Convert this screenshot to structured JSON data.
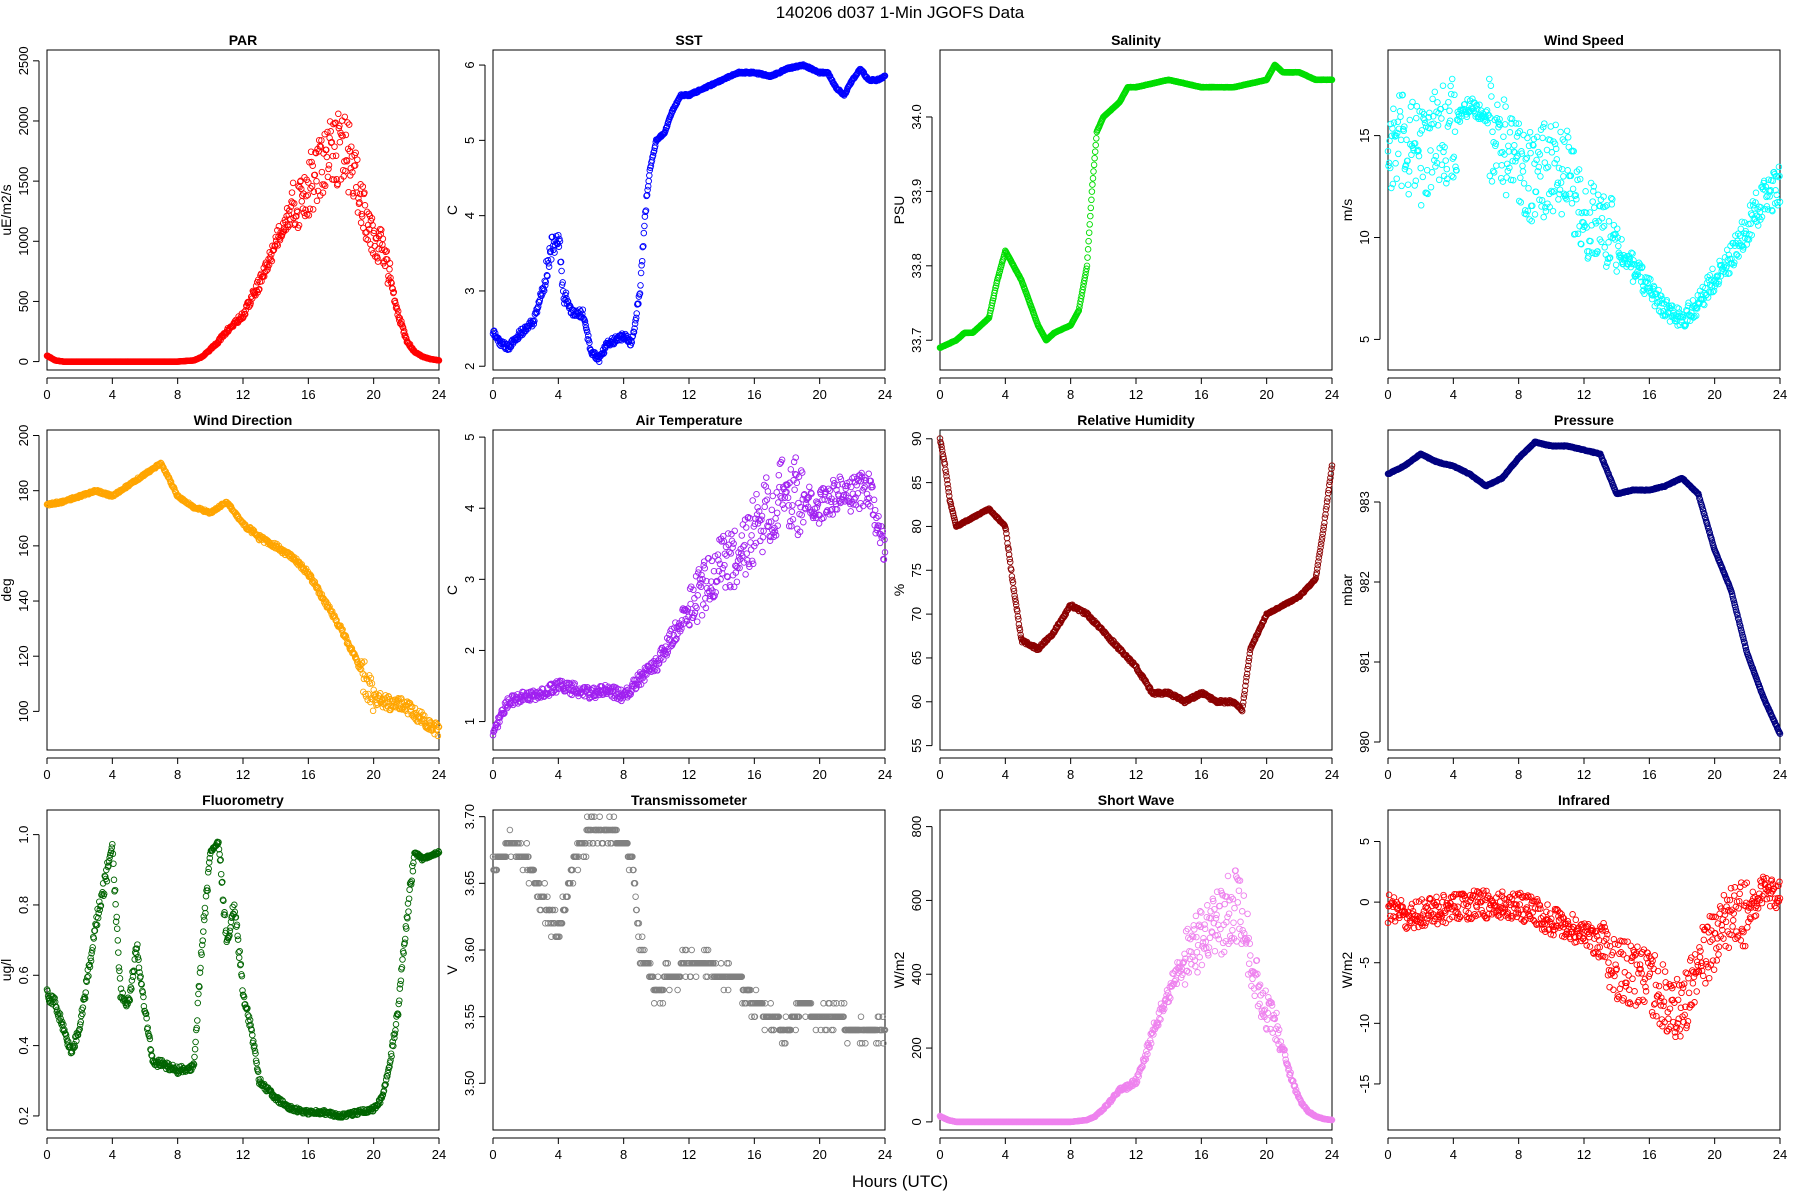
{
  "figure": {
    "title": "140206   d037   1-Min  JGOFS Data",
    "xlabel": "Hours (UTC)"
  },
  "chart_data": [
    {
      "type": "scatter",
      "title": "PAR",
      "ylabel": "uE/m2/s",
      "color": "#ff0000",
      "xlim": [
        0,
        24
      ],
      "ylim": [
        -70,
        2590
      ],
      "xticks": [
        0,
        4,
        8,
        12,
        16,
        20,
        24
      ],
      "yticks": [
        0,
        500,
        1000,
        1500,
        2000,
        2500
      ],
      "x": [
        0,
        0.5,
        1,
        2,
        4,
        6,
        8,
        9,
        9.5,
        10,
        10.5,
        11,
        11.5,
        12,
        12.5,
        13,
        13.5,
        14,
        14.5,
        15,
        15.5,
        16,
        16.5,
        17,
        17.5,
        18,
        18.5,
        19,
        19.5,
        20,
        20.5,
        21,
        21.5,
        22,
        22.5,
        23,
        23.5,
        24
      ],
      "y": [
        50,
        10,
        0,
        0,
        0,
        0,
        0,
        10,
        40,
        100,
        170,
        250,
        320,
        380,
        520,
        650,
        800,
        1000,
        1150,
        1250,
        1350,
        1450,
        1550,
        1650,
        1750,
        1800,
        1700,
        1450,
        1250,
        1050,
        950,
        700,
        400,
        180,
        80,
        40,
        20,
        10
      ],
      "noise": 0.08,
      "scatter_from": 15,
      "scatter_to": 21
    },
    {
      "type": "scatter",
      "title": "SST",
      "ylabel": "C",
      "color": "#0000ff",
      "xlim": [
        0,
        24
      ],
      "ylim": [
        1.95,
        6.2
      ],
      "xticks": [
        0,
        4,
        8,
        12,
        16,
        20,
        24
      ],
      "yticks": [
        2,
        3,
        4,
        5,
        6
      ],
      "x": [
        0,
        0.5,
        1,
        1.5,
        2,
        2.5,
        3,
        3.5,
        4,
        4.3,
        4.8,
        5.5,
        6,
        6.5,
        7,
        7.5,
        8,
        8.5,
        9,
        9.3,
        9.6,
        10,
        10.5,
        11,
        11.5,
        12,
        13,
        14,
        15,
        16,
        17,
        18,
        19,
        20,
        20.5,
        21,
        21.5,
        22,
        22.5,
        23,
        23.5,
        24
      ],
      "y": [
        2.45,
        2.3,
        2.25,
        2.4,
        2.5,
        2.6,
        3.0,
        3.5,
        3.8,
        3.0,
        2.7,
        2.7,
        2.2,
        2.1,
        2.3,
        2.35,
        2.4,
        2.3,
        3.0,
        4.0,
        4.6,
        5.0,
        5.1,
        5.4,
        5.6,
        5.6,
        5.7,
        5.8,
        5.9,
        5.9,
        5.85,
        5.95,
        6.0,
        5.9,
        5.9,
        5.7,
        5.6,
        5.8,
        5.95,
        5.8,
        5.8,
        5.85
      ],
      "noise": 0.02,
      "scatter_from": 3,
      "scatter_to": 4.5
    },
    {
      "type": "scatter",
      "title": "Salinity",
      "ylabel": "PSU",
      "color": "#00dd00",
      "xlim": [
        0,
        24
      ],
      "ylim": [
        33.66,
        34.09
      ],
      "xticks": [
        0,
        4,
        8,
        12,
        16,
        20,
        24
      ],
      "yticks": [
        33.7,
        33.8,
        33.9,
        34.0
      ],
      "yticklabels": [
        "33.7",
        "33.8",
        "33.9",
        "34.0"
      ],
      "x": [
        0,
        1,
        1.5,
        2,
        3,
        3.5,
        4,
        4.5,
        5,
        5.5,
        6,
        6.5,
        7,
        8,
        8.5,
        9,
        9.3,
        9.6,
        10,
        10.5,
        11,
        11.5,
        12,
        14,
        16,
        18,
        20,
        20.5,
        21,
        22,
        23,
        24
      ],
      "y": [
        33.69,
        33.7,
        33.71,
        33.71,
        33.73,
        33.78,
        33.82,
        33.8,
        33.78,
        33.75,
        33.72,
        33.7,
        33.71,
        33.72,
        33.74,
        33.8,
        33.9,
        33.98,
        34.0,
        34.01,
        34.02,
        34.04,
        34.04,
        34.05,
        34.04,
        34.04,
        34.05,
        34.07,
        34.06,
        34.06,
        34.05,
        34.05
      ],
      "noise": 0.004,
      "scatter_from": 3,
      "scatter_to": 5
    },
    {
      "type": "scatter",
      "title": "Wind Speed",
      "ylabel": "m/s",
      "color": "#00ffff",
      "xlim": [
        0,
        24
      ],
      "ylim": [
        3.5,
        19.2
      ],
      "xticks": [
        0,
        4,
        8,
        12,
        16,
        20,
        24
      ],
      "yticks": [
        5,
        10,
        15
      ],
      "x": [
        0,
        1,
        2,
        3,
        4,
        5,
        6,
        7,
        8,
        9,
        10,
        11,
        12,
        13,
        14,
        15,
        16,
        17,
        18,
        19,
        20,
        21,
        22,
        23,
        24
      ],
      "y": [
        14.5,
        14.5,
        14,
        15,
        15.5,
        16.5,
        16,
        14.5,
        13.5,
        13,
        13.5,
        13,
        11,
        10.5,
        10,
        8.5,
        7.5,
        6.5,
        6,
        6.8,
        8,
        9,
        10.5,
        12,
        12.5
      ],
      "noise": 0.08,
      "scatter_from": 0,
      "scatter_to": 14
    },
    {
      "type": "scatter",
      "title": "Wind Direction",
      "ylabel": "deg",
      "color": "#ffa500",
      "xlim": [
        0,
        24
      ],
      "ylim": [
        86,
        202
      ],
      "xticks": [
        0,
        4,
        8,
        12,
        16,
        20,
        24
      ],
      "yticks": [
        100,
        120,
        140,
        160,
        180,
        200
      ],
      "x": [
        0,
        1,
        2,
        3,
        4,
        5,
        6,
        7,
        8,
        9,
        10,
        11,
        12,
        13,
        14,
        15,
        16,
        17,
        18,
        19,
        20,
        21,
        22,
        23,
        24
      ],
      "y": [
        175,
        176,
        178,
        180,
        178,
        182,
        186,
        190,
        178,
        174,
        172,
        176,
        168,
        163,
        160,
        156,
        150,
        140,
        130,
        118,
        105,
        103,
        102,
        97,
        93
      ],
      "noise": 0.025,
      "scatter_from": 12,
      "scatter_to": 20
    },
    {
      "type": "scatter",
      "title": "Air Temperature",
      "ylabel": "C",
      "color": "#a020f0",
      "xlim": [
        0,
        24
      ],
      "ylim": [
        0.6,
        5.1
      ],
      "xticks": [
        0,
        4,
        8,
        12,
        16,
        20,
        24
      ],
      "yticks": [
        1,
        2,
        3,
        4,
        5
      ],
      "x": [
        0,
        0.5,
        1,
        2,
        3,
        4,
        5,
        6,
        7,
        8,
        9,
        10,
        11,
        12,
        13,
        14,
        15,
        16,
        17,
        18,
        19,
        20,
        21,
        22,
        23,
        23.5,
        24
      ],
      "y": [
        0.8,
        1.1,
        1.3,
        1.35,
        1.4,
        1.5,
        1.45,
        1.4,
        1.45,
        1.35,
        1.6,
        1.8,
        2.2,
        2.6,
        2.9,
        3.2,
        3.3,
        3.7,
        4.0,
        4.3,
        4.1,
        4.0,
        4.2,
        4.2,
        4.3,
        3.8,
        3.4
      ],
      "noise": 0.06,
      "scatter_from": 12,
      "scatter_to": 19
    },
    {
      "type": "scatter",
      "title": "Relative Humidity",
      "ylabel": "%",
      "color": "#8b0000",
      "xlim": [
        0,
        24
      ],
      "ylim": [
        54.5,
        91
      ],
      "xticks": [
        0,
        4,
        8,
        12,
        16,
        20,
        24
      ],
      "yticks": [
        55,
        60,
        65,
        70,
        75,
        80,
        85,
        90
      ],
      "x": [
        0,
        0.3,
        0.6,
        1,
        2,
        3,
        4,
        4.5,
        5,
        6,
        7,
        8,
        9,
        10,
        11,
        12,
        13,
        14,
        15,
        16,
        17,
        18,
        18.5,
        19,
        20,
        21,
        22,
        23,
        23.5,
        24
      ],
      "y": [
        90,
        87,
        83,
        80,
        81,
        82,
        80,
        73,
        67,
        66,
        68,
        71,
        70,
        68,
        66,
        64,
        61,
        61,
        60,
        61,
        60,
        60,
        59,
        66,
        70,
        71,
        72,
        74,
        80,
        87
      ],
      "noise": 0.015,
      "scatter_from": 4,
      "scatter_to": 18
    },
    {
      "type": "scatter",
      "title": "Pressure",
      "ylabel": "mbar",
      "color": "#000080",
      "xlim": [
        0,
        24
      ],
      "ylim": [
        979.9,
        983.9
      ],
      "xticks": [
        0,
        4,
        8,
        12,
        16,
        20,
        24
      ],
      "yticks": [
        980,
        981,
        982,
        983
      ],
      "x": [
        0,
        1,
        2,
        3,
        4,
        5,
        6,
        7,
        8,
        9,
        10,
        11,
        12,
        13,
        14,
        15,
        16,
        17,
        18,
        19,
        20,
        21,
        22,
        23,
        24
      ],
      "y": [
        983.35,
        983.45,
        983.6,
        983.5,
        983.45,
        983.35,
        983.2,
        983.3,
        983.55,
        983.75,
        983.7,
        983.7,
        983.65,
        983.6,
        983.1,
        983.15,
        983.15,
        983.2,
        983.3,
        983.1,
        982.4,
        981.9,
        981.1,
        980.55,
        980.1
      ],
      "noise": 0.01,
      "scatter_from": 0,
      "scatter_to": 0
    },
    {
      "type": "scatter",
      "title": "Fluorometry",
      "ylabel": "ug/l",
      "color": "#006400",
      "xlim": [
        0,
        24
      ],
      "ylim": [
        0.16,
        1.07
      ],
      "xticks": [
        0,
        4,
        8,
        12,
        16,
        20,
        24
      ],
      "yticks": [
        0.2,
        0.4,
        0.6,
        0.8,
        1.0
      ],
      "yticklabels": [
        "0.2",
        "0.4",
        "0.6",
        "0.8",
        "1.0"
      ],
      "x": [
        0,
        0.5,
        1,
        1.5,
        2,
        2.5,
        3,
        3.5,
        4,
        4.5,
        5,
        5.5,
        6,
        6.5,
        7,
        8,
        9,
        9.5,
        10,
        10.5,
        11,
        11.5,
        12,
        12.5,
        13,
        14,
        15,
        16,
        17,
        18,
        19,
        20,
        20.5,
        21,
        21.5,
        22,
        22.5,
        23,
        24
      ],
      "y": [
        0.55,
        0.52,
        0.45,
        0.38,
        0.45,
        0.6,
        0.75,
        0.85,
        0.97,
        0.55,
        0.52,
        0.68,
        0.5,
        0.35,
        0.35,
        0.33,
        0.34,
        0.7,
        0.95,
        0.98,
        0.7,
        0.8,
        0.55,
        0.45,
        0.3,
        0.25,
        0.22,
        0.21,
        0.21,
        0.2,
        0.21,
        0.22,
        0.25,
        0.35,
        0.5,
        0.75,
        0.95,
        0.93,
        0.95
      ],
      "noise": 0.03,
      "scatter_from": 0,
      "scatter_to": 0
    },
    {
      "type": "scatter",
      "title": "Transmissometer",
      "ylabel": "V",
      "color": "#808080",
      "xlim": [
        0,
        24
      ],
      "ylim": [
        3.465,
        3.705
      ],
      "xticks": [
        0,
        4,
        8,
        12,
        16,
        20,
        24
      ],
      "yticks": [
        3.5,
        3.55,
        3.6,
        3.65,
        3.7
      ],
      "yticklabels": [
        "3.50",
        "3.55",
        "3.60",
        "3.65",
        "3.70"
      ],
      "x": [
        0,
        1,
        2,
        3,
        4,
        5,
        6,
        7,
        8,
        8.5,
        9,
        10,
        11,
        12,
        13,
        14,
        15,
        16,
        17,
        18,
        19,
        20,
        21,
        22,
        23,
        24
      ],
      "y": [
        3.66,
        3.68,
        3.67,
        3.64,
        3.61,
        3.67,
        3.69,
        3.69,
        3.68,
        3.67,
        3.6,
        3.57,
        3.58,
        3.59,
        3.59,
        3.58,
        3.58,
        3.56,
        3.55,
        3.54,
        3.56,
        3.55,
        3.55,
        3.54,
        3.54,
        3.54
      ],
      "noise": 0.0,
      "quantum": 0.01,
      "scatter_from": 0,
      "scatter_to": 0
    },
    {
      "type": "scatter",
      "title": "Short Wave",
      "ylabel": "W/m2",
      "color": "#ee82ee",
      "xlim": [
        0,
        24
      ],
      "ylim": [
        -22,
        845
      ],
      "xticks": [
        0,
        4,
        8,
        12,
        16,
        20,
        24
      ],
      "yticks": [
        0,
        200,
        400,
        600,
        800
      ],
      "x": [
        0,
        0.5,
        1,
        2,
        4,
        6,
        8,
        9,
        9.5,
        10,
        10.5,
        11,
        11.5,
        12,
        12.5,
        13,
        13.5,
        14,
        14.5,
        15,
        15.5,
        16,
        16.5,
        17,
        17.5,
        18,
        18.5,
        19,
        19.5,
        20,
        20.5,
        21,
        21.5,
        22,
        22.5,
        23,
        23.5,
        24
      ],
      "y": [
        15,
        5,
        0,
        0,
        0,
        0,
        0,
        5,
        15,
        35,
        60,
        85,
        95,
        110,
        170,
        240,
        300,
        350,
        400,
        440,
        470,
        490,
        520,
        540,
        560,
        600,
        560,
        450,
        360,
        300,
        270,
        200,
        120,
        60,
        30,
        15,
        8,
        5
      ],
      "noise": 0.08,
      "scatter_from": 15,
      "scatter_to": 21
    },
    {
      "type": "scatter",
      "title": "Infrared",
      "ylabel": "W/m2",
      "color": "#ff0000",
      "xlim": [
        0,
        24
      ],
      "ylim": [
        -18.8,
        7.6
      ],
      "xticks": [
        0,
        4,
        8,
        12,
        16,
        20,
        24
      ],
      "yticks": [
        -15,
        -10,
        -5,
        0,
        5
      ],
      "x": [
        0,
        1,
        2,
        3,
        4,
        5,
        6,
        7,
        8,
        9,
        10,
        11,
        12,
        13,
        14,
        15,
        16,
        17,
        18,
        19,
        20,
        21,
        22,
        23,
        24
      ],
      "y": [
        -0.5,
        -1,
        -1,
        -0.7,
        -0.5,
        -0.2,
        -0.2,
        -0.2,
        -0.3,
        -0.8,
        -1.5,
        -2,
        -2.5,
        -3.5,
        -5.5,
        -6,
        -6.5,
        -8,
        -9,
        -5,
        -3,
        -1,
        -1,
        1,
        0.5
      ],
      "noise": 0.0,
      "abs_noise": 1.2,
      "scatter_from": 13,
      "scatter_to": 22
    }
  ]
}
